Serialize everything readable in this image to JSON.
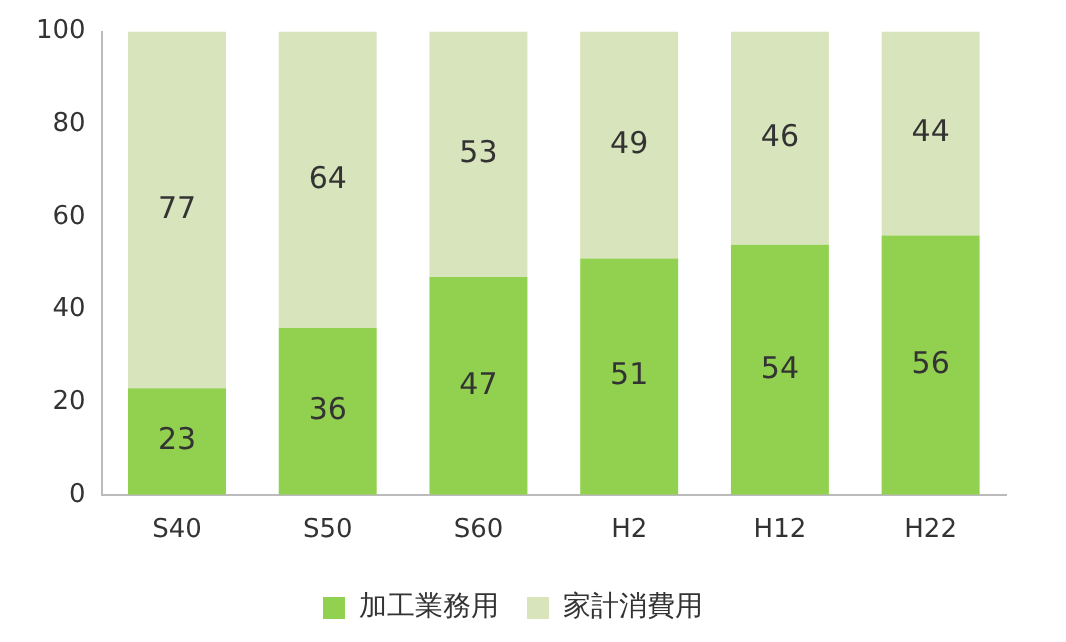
{
  "chart_data": {
    "type": "bar",
    "stacked": true,
    "categories": [
      "S40",
      "S50",
      "S60",
      "H2",
      "H12",
      "H22"
    ],
    "series": [
      {
        "name": "加工業務用",
        "color": "#92d050",
        "values": [
          23,
          36,
          47,
          51,
          54,
          56
        ]
      },
      {
        "name": "家計消費用",
        "color": "#d8e4bc",
        "values": [
          77,
          64,
          53,
          49,
          46,
          44
        ]
      }
    ],
    "ylim": [
      0,
      100
    ],
    "yticks": [
      0,
      20,
      40,
      60,
      80,
      100
    ],
    "grid": false,
    "legend": "bottom",
    "data_labels": true
  }
}
